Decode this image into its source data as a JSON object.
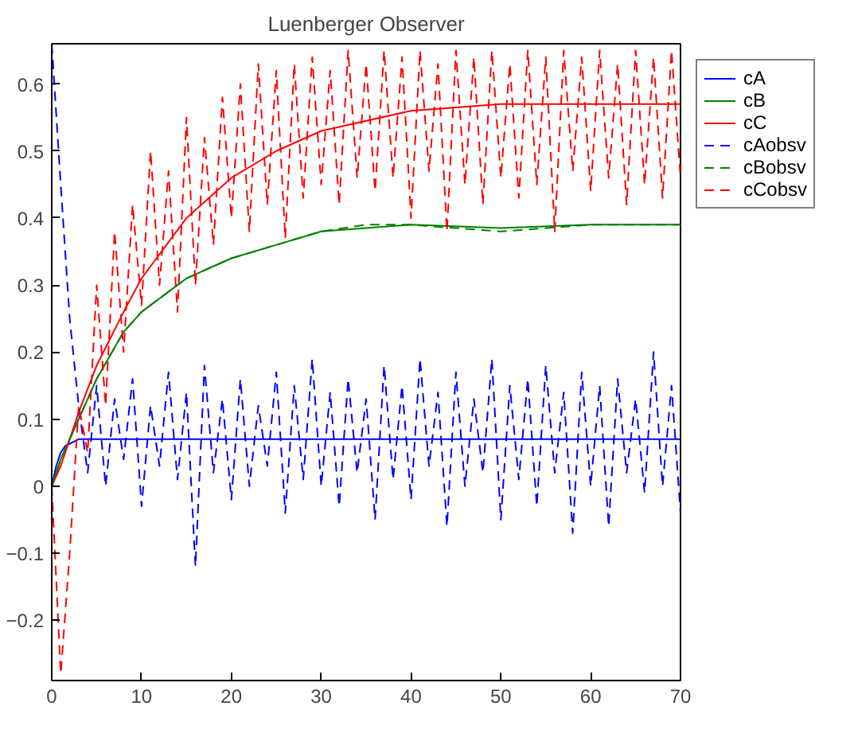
{
  "chart_data": {
    "type": "line",
    "title": "Luenberger Observer",
    "xlim": [
      0,
      70
    ],
    "ylim": [
      -0.29,
      0.66
    ],
    "xticks": [
      0,
      10,
      20,
      30,
      40,
      50,
      60,
      70
    ],
    "yticks": [
      -0.2,
      -0.1,
      0,
      0.1,
      0.2,
      0.3,
      0.4,
      0.5,
      0.6
    ],
    "legend": "right",
    "series": [
      {
        "name": "cA",
        "color": "#0000ff",
        "line_style": "solid",
        "x": [
          0,
          0.5,
          1,
          1.5,
          3,
          10,
          70
        ],
        "values": [
          0.0,
          0.03,
          0.05,
          0.06,
          0.07,
          0.07,
          0.07
        ]
      },
      {
        "name": "cB",
        "color": "#008000",
        "line_style": "solid",
        "x": [
          0,
          1,
          2,
          3,
          5,
          8,
          10,
          15,
          20,
          25,
          30,
          35,
          40,
          50,
          60,
          70
        ],
        "values": [
          0,
          0.04,
          0.07,
          0.1,
          0.16,
          0.23,
          0.26,
          0.31,
          0.34,
          0.36,
          0.38,
          0.385,
          0.39,
          0.385,
          0.39,
          0.39
        ]
      },
      {
        "name": "cC",
        "color": "#ff0000",
        "line_style": "solid",
        "x": [
          0,
          1,
          2,
          3,
          5,
          8,
          10,
          15,
          20,
          25,
          30,
          40,
          50,
          60,
          70
        ],
        "values": [
          0,
          0.03,
          0.07,
          0.11,
          0.18,
          0.26,
          0.31,
          0.4,
          0.46,
          0.5,
          0.53,
          0.56,
          0.57,
          0.57,
          0.57
        ]
      },
      {
        "name": "cAobsv",
        "color": "#0000ff",
        "line_style": "dashed",
        "x": [
          0,
          1,
          2,
          3,
          4,
          5,
          6,
          7,
          8,
          9,
          10,
          11,
          12,
          13,
          14,
          15,
          16,
          17,
          18,
          19,
          20,
          21,
          22,
          23,
          24,
          25,
          26,
          27,
          28,
          29,
          30,
          31,
          32,
          33,
          34,
          35,
          36,
          37,
          38,
          39,
          40,
          41,
          42,
          43,
          44,
          45,
          46,
          47,
          48,
          49,
          50,
          51,
          52,
          53,
          54,
          55,
          56,
          57,
          58,
          59,
          60,
          61,
          62,
          63,
          64,
          65,
          66,
          67,
          68,
          69,
          70
        ],
        "values": [
          0.66,
          0.45,
          0.25,
          0.12,
          0.02,
          0.15,
          0.0,
          0.13,
          0.04,
          0.16,
          -0.03,
          0.12,
          0.03,
          0.17,
          0.01,
          0.14,
          -0.12,
          0.18,
          0.02,
          0.13,
          -0.02,
          0.16,
          0.0,
          0.12,
          0.03,
          0.17,
          -0.04,
          0.15,
          0.01,
          0.19,
          0.0,
          0.14,
          -0.03,
          0.16,
          0.02,
          0.13,
          -0.05,
          0.18,
          0.01,
          0.15,
          -0.02,
          0.19,
          0.03,
          0.14,
          -0.06,
          0.17,
          0.0,
          0.13,
          0.02,
          0.19,
          -0.05,
          0.15,
          0.01,
          0.16,
          -0.03,
          0.18,
          0.02,
          0.14,
          -0.07,
          0.17,
          0.0,
          0.15,
          -0.06,
          0.16,
          0.02,
          0.13,
          -0.01,
          0.2,
          0.0,
          0.15,
          -0.04
        ]
      },
      {
        "name": "cBobsv",
        "color": "#008000",
        "line_style": "dashed",
        "x": [
          0,
          1,
          2,
          3,
          5,
          8,
          10,
          15,
          20,
          25,
          30,
          35,
          40,
          50,
          60,
          70
        ],
        "values": [
          0,
          0.04,
          0.07,
          0.1,
          0.16,
          0.23,
          0.26,
          0.31,
          0.34,
          0.36,
          0.38,
          0.39,
          0.39,
          0.38,
          0.39,
          0.39
        ]
      },
      {
        "name": "cCobsv",
        "color": "#ff0000",
        "line_style": "dashed",
        "x": [
          0,
          1,
          2,
          3,
          4,
          5,
          6,
          7,
          8,
          9,
          10,
          11,
          12,
          13,
          14,
          15,
          16,
          17,
          18,
          19,
          20,
          21,
          22,
          23,
          24,
          25,
          26,
          27,
          28,
          29,
          30,
          31,
          32,
          33,
          34,
          35,
          36,
          37,
          38,
          39,
          40,
          41,
          42,
          43,
          44,
          45,
          46,
          47,
          48,
          49,
          50,
          51,
          52,
          53,
          54,
          55,
          56,
          57,
          58,
          59,
          60,
          61,
          62,
          63,
          64,
          65,
          66,
          67,
          68,
          69,
          70
        ],
        "values": [
          0.0,
          -0.28,
          -0.1,
          0.12,
          0.05,
          0.3,
          0.12,
          0.38,
          0.2,
          0.42,
          0.27,
          0.5,
          0.3,
          0.47,
          0.26,
          0.55,
          0.3,
          0.52,
          0.36,
          0.58,
          0.4,
          0.6,
          0.38,
          0.63,
          0.42,
          0.62,
          0.37,
          0.63,
          0.43,
          0.64,
          0.45,
          0.62,
          0.42,
          0.65,
          0.46,
          0.63,
          0.44,
          0.65,
          0.46,
          0.64,
          0.4,
          0.65,
          0.47,
          0.63,
          0.38,
          0.65,
          0.45,
          0.64,
          0.42,
          0.65,
          0.46,
          0.63,
          0.43,
          0.65,
          0.45,
          0.64,
          0.38,
          0.65,
          0.47,
          0.64,
          0.44,
          0.65,
          0.46,
          0.63,
          0.42,
          0.65,
          0.45,
          0.64,
          0.43,
          0.65,
          0.46
        ]
      }
    ]
  }
}
